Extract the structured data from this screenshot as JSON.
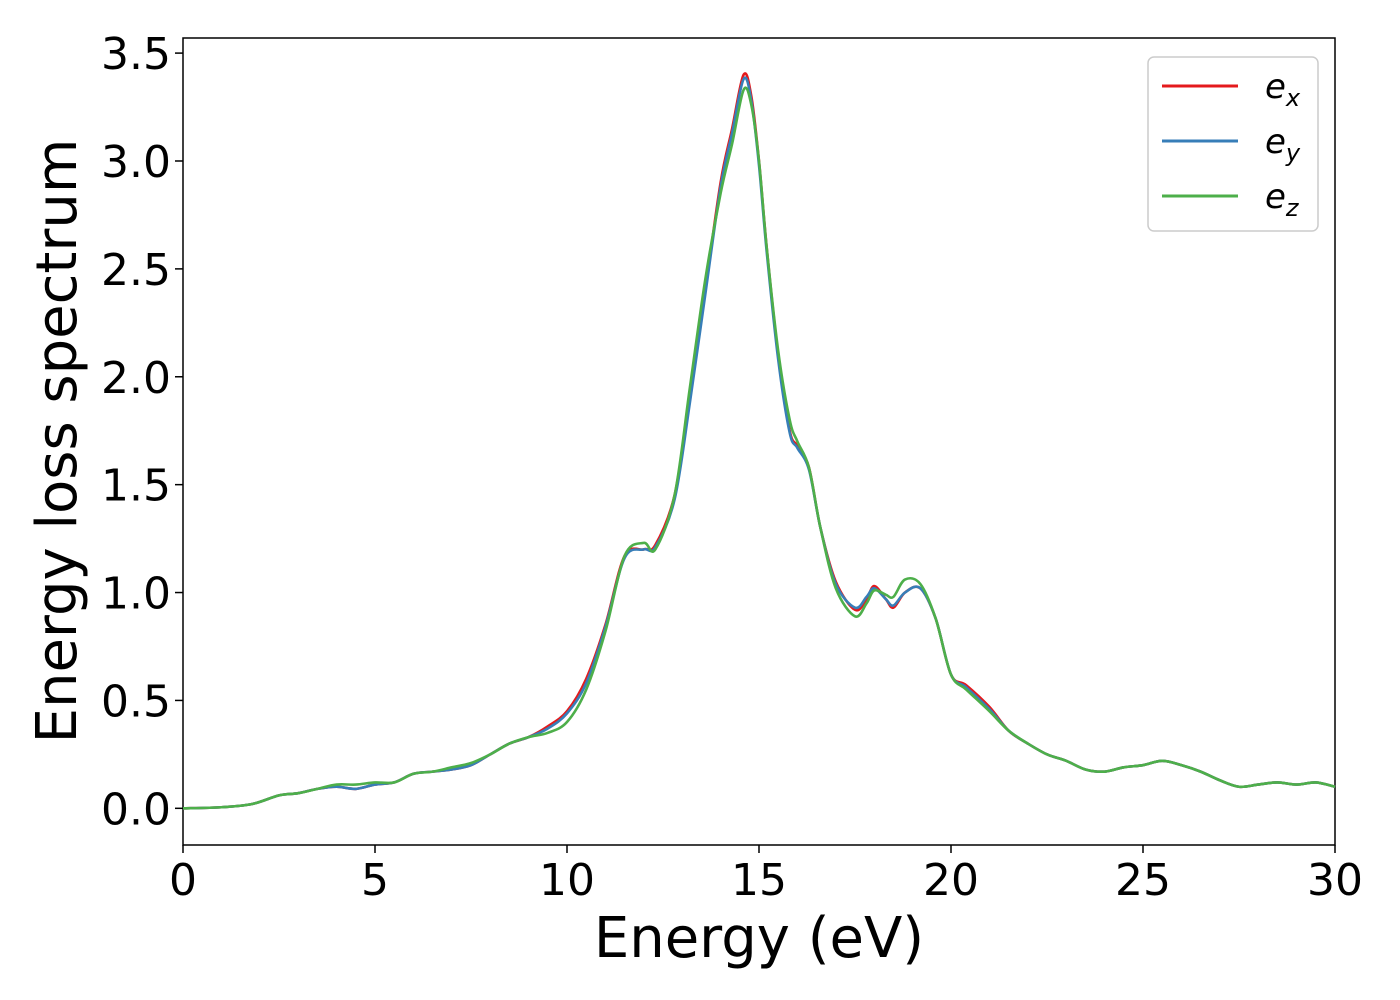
{
  "chart_data": {
    "type": "line",
    "xlabel": "Energy (eV)",
    "ylabel": "Energy loss spectrum",
    "xlim": [
      0,
      30
    ],
    "ylim": [
      -0.17,
      3.57
    ],
    "xticks": [
      0,
      5,
      10,
      15,
      20,
      25,
      30
    ],
    "xtick_labels": [
      "0",
      "5",
      "10",
      "15",
      "20",
      "25",
      "30"
    ],
    "yticks": [
      0.0,
      0.5,
      1.0,
      1.5,
      2.0,
      2.5,
      3.0,
      3.5
    ],
    "ytick_labels": [
      "0.0",
      "0.5",
      "1.0",
      "1.5",
      "2.0",
      "2.5",
      "3.0",
      "3.5"
    ],
    "grid": false,
    "legend_position": "top-right",
    "series": [
      {
        "name": "e",
        "name_sub": "x",
        "color": "#e41a1c",
        "x": [
          0,
          1,
          1.8,
          2.5,
          3,
          3.5,
          4,
          4.5,
          5,
          5.5,
          6,
          6.5,
          7,
          7.5,
          8,
          8.5,
          9,
          9.5,
          10,
          10.5,
          11,
          11.5,
          12,
          12.3,
          12.8,
          13.2,
          13.6,
          14,
          14.3,
          14.6,
          14.8,
          15,
          15.2,
          15.5,
          15.8,
          16,
          16.3,
          16.6,
          17,
          17.5,
          17.8,
          18,
          18.3,
          18.5,
          18.8,
          19.2,
          19.6,
          20,
          20.4,
          21,
          21.5,
          22,
          22.5,
          23,
          23.5,
          24,
          24.5,
          25,
          25.5,
          26,
          26.5,
          27,
          27.5,
          28,
          28.5,
          29,
          29.5,
          30
        ],
        "y": [
          0.0,
          0.005,
          0.02,
          0.06,
          0.07,
          0.09,
          0.1,
          0.09,
          0.11,
          0.12,
          0.16,
          0.17,
          0.18,
          0.2,
          0.25,
          0.3,
          0.33,
          0.38,
          0.45,
          0.6,
          0.85,
          1.17,
          1.2,
          1.22,
          1.45,
          1.9,
          2.4,
          2.9,
          3.15,
          3.4,
          3.3,
          3.0,
          2.6,
          2.1,
          1.75,
          1.68,
          1.58,
          1.3,
          1.05,
          0.92,
          0.97,
          1.03,
          0.97,
          0.93,
          1.0,
          1.02,
          0.88,
          0.62,
          0.57,
          0.47,
          0.36,
          0.3,
          0.25,
          0.22,
          0.18,
          0.17,
          0.19,
          0.2,
          0.22,
          0.2,
          0.17,
          0.13,
          0.1,
          0.11,
          0.12,
          0.11,
          0.12,
          0.1
        ]
      },
      {
        "name": "e",
        "name_sub": "y",
        "color": "#377eb8",
        "x": [
          0,
          1,
          1.8,
          2.5,
          3,
          3.5,
          4,
          4.5,
          5,
          5.5,
          6,
          6.5,
          7,
          7.5,
          8,
          8.5,
          9,
          9.5,
          10,
          10.5,
          11,
          11.5,
          12,
          12.3,
          12.8,
          13.2,
          13.6,
          14,
          14.3,
          14.6,
          14.8,
          15,
          15.2,
          15.5,
          15.8,
          16,
          16.3,
          16.6,
          17,
          17.5,
          17.8,
          18,
          18.3,
          18.5,
          18.8,
          19.2,
          19.6,
          20,
          20.4,
          21,
          21.5,
          22,
          22.5,
          23,
          23.5,
          24,
          24.5,
          25,
          25.5,
          26,
          26.5,
          27,
          27.5,
          28,
          28.5,
          29,
          29.5,
          30
        ],
        "y": [
          0.0,
          0.005,
          0.02,
          0.06,
          0.07,
          0.09,
          0.1,
          0.09,
          0.11,
          0.12,
          0.16,
          0.17,
          0.18,
          0.2,
          0.25,
          0.3,
          0.33,
          0.37,
          0.44,
          0.58,
          0.84,
          1.16,
          1.2,
          1.21,
          1.43,
          1.88,
          2.38,
          2.88,
          3.13,
          3.38,
          3.28,
          2.98,
          2.58,
          2.08,
          1.74,
          1.67,
          1.57,
          1.3,
          1.04,
          0.93,
          0.98,
          1.02,
          0.97,
          0.94,
          1.0,
          1.02,
          0.88,
          0.62,
          0.56,
          0.46,
          0.36,
          0.3,
          0.25,
          0.22,
          0.18,
          0.17,
          0.19,
          0.2,
          0.22,
          0.2,
          0.17,
          0.13,
          0.1,
          0.11,
          0.12,
          0.11,
          0.12,
          0.1
        ]
      },
      {
        "name": "e",
        "name_sub": "z",
        "color": "#4daf4a",
        "x": [
          0,
          1,
          1.8,
          2.5,
          3,
          3.5,
          4,
          4.5,
          5,
          5.5,
          6,
          6.5,
          7,
          7.5,
          8,
          8.5,
          9,
          9.5,
          10,
          10.5,
          11,
          11.5,
          12,
          12.3,
          12.8,
          13.2,
          13.6,
          14,
          14.3,
          14.6,
          14.8,
          15,
          15.2,
          15.5,
          15.8,
          16,
          16.3,
          16.6,
          17,
          17.5,
          17.8,
          18,
          18.3,
          18.5,
          18.8,
          19.2,
          19.6,
          20,
          20.4,
          21,
          21.5,
          22,
          22.5,
          23,
          23.5,
          24,
          24.5,
          25,
          25.5,
          26,
          26.5,
          27,
          27.5,
          28,
          28.5,
          29,
          29.5,
          30
        ],
        "y": [
          0.0,
          0.005,
          0.02,
          0.06,
          0.07,
          0.09,
          0.11,
          0.11,
          0.12,
          0.12,
          0.16,
          0.17,
          0.19,
          0.21,
          0.25,
          0.3,
          0.33,
          0.35,
          0.4,
          0.55,
          0.82,
          1.17,
          1.23,
          1.2,
          1.45,
          1.95,
          2.45,
          2.85,
          3.08,
          3.33,
          3.26,
          3.0,
          2.6,
          2.12,
          1.8,
          1.7,
          1.58,
          1.3,
          1.02,
          0.89,
          0.95,
          1.01,
          0.99,
          0.98,
          1.06,
          1.04,
          0.88,
          0.62,
          0.55,
          0.45,
          0.36,
          0.3,
          0.25,
          0.22,
          0.18,
          0.17,
          0.19,
          0.2,
          0.22,
          0.2,
          0.17,
          0.13,
          0.1,
          0.11,
          0.12,
          0.11,
          0.12,
          0.1
        ]
      }
    ]
  }
}
